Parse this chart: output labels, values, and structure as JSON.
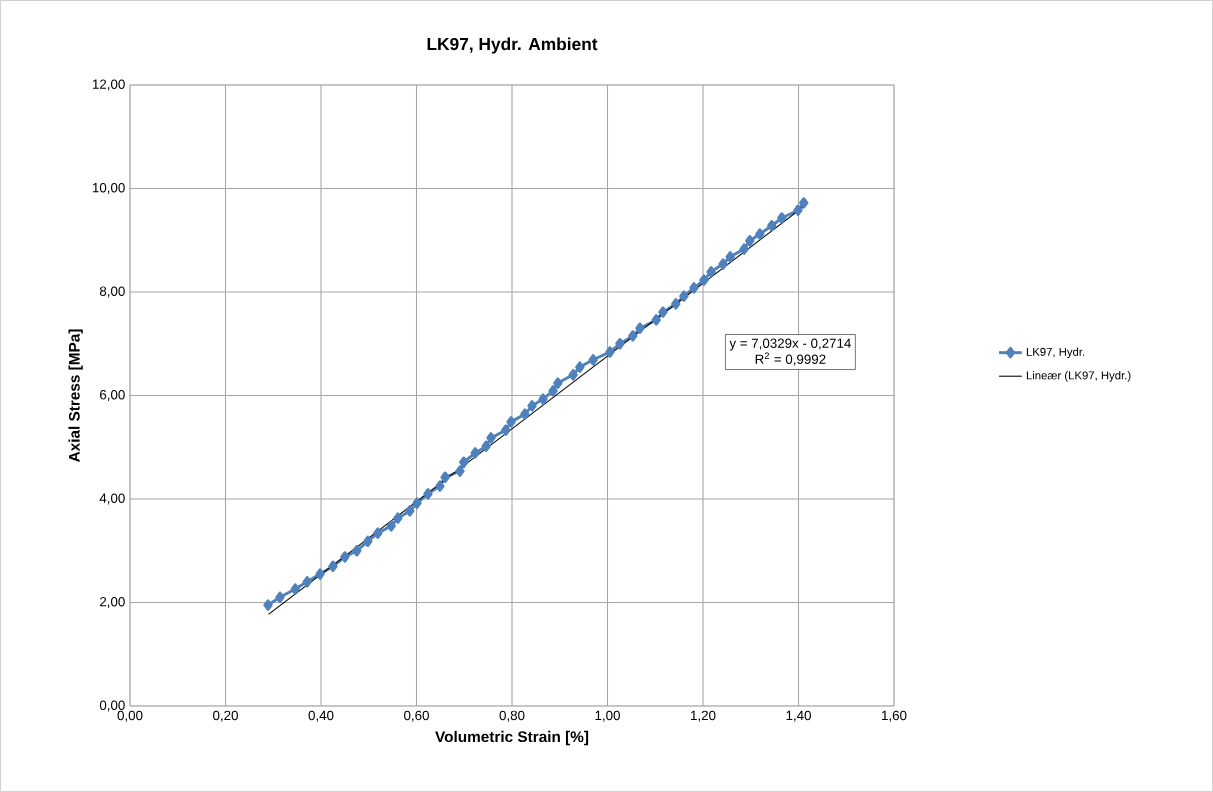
{
  "chart_data": {
    "type": "line",
    "title": "LK97, Hydr. Ambient",
    "xlabel": "Volumetric Strain [%]",
    "ylabel": "Axial Stress [MPa]",
    "xlim": [
      0,
      1.6
    ],
    "ylim": [
      0,
      12
    ],
    "xticks": [
      {
        "value": 0,
        "label": "0,00"
      },
      {
        "value": 0.2,
        "label": "0,20"
      },
      {
        "value": 0.4,
        "label": "0,40"
      },
      {
        "value": 0.6,
        "label": "0,60"
      },
      {
        "value": 0.8,
        "label": "0,80"
      },
      {
        "value": 1.0,
        "label": "1,00"
      },
      {
        "value": 1.2,
        "label": "1,20"
      },
      {
        "value": 1.4,
        "label": "1,40"
      },
      {
        "value": 1.6,
        "label": "1,60"
      }
    ],
    "yticks": [
      {
        "value": 0,
        "label": "0,00"
      },
      {
        "value": 2,
        "label": "2,00"
      },
      {
        "value": 4,
        "label": "4,00"
      },
      {
        "value": 6,
        "label": "6,00"
      },
      {
        "value": 8,
        "label": "8,00"
      },
      {
        "value": 10,
        "label": "10,00"
      },
      {
        "value": 12,
        "label": "12,00"
      }
    ],
    "grid": true,
    "legend": "right",
    "marker": "diamond",
    "annotations": [
      "y = 7,0329x - 0,2714",
      "R$^{2}$ = 0,9992"
    ],
    "series": [
      {
        "name": "LK97, Hydr.",
        "color": "#4f81bd",
        "x": [
          0.289,
          0.314,
          0.346,
          0.371,
          0.398,
          0.425,
          0.45,
          0.475,
          0.498,
          0.519,
          0.547,
          0.561,
          0.586,
          0.601,
          0.624,
          0.649,
          0.66,
          0.691,
          0.699,
          0.723,
          0.746,
          0.756,
          0.787,
          0.798,
          0.827,
          0.842,
          0.865,
          0.886,
          0.896,
          0.928,
          0.942,
          0.97,
          1.005,
          1.026,
          1.053,
          1.068,
          1.102,
          1.116,
          1.143,
          1.16,
          1.181,
          1.202,
          1.217,
          1.242,
          1.257,
          1.286,
          1.298,
          1.319,
          1.344,
          1.365,
          1.399,
          1.411
        ],
        "values": [
          1.95,
          2.1,
          2.26,
          2.4,
          2.55,
          2.7,
          2.88,
          3.0,
          3.18,
          3.34,
          3.48,
          3.63,
          3.77,
          3.92,
          4.1,
          4.25,
          4.42,
          4.54,
          4.71,
          4.89,
          5.02,
          5.18,
          5.33,
          5.49,
          5.64,
          5.8,
          5.93,
          6.09,
          6.24,
          6.4,
          6.55,
          6.69,
          6.84,
          7.0,
          7.15,
          7.3,
          7.46,
          7.61,
          7.77,
          7.92,
          8.08,
          8.23,
          8.39,
          8.54,
          8.68,
          8.83,
          8.99,
          9.12,
          9.28,
          9.43,
          9.58,
          9.72
        ]
      },
      {
        "name": "Lineær (LK97, Hydr.)",
        "color": "#000000",
        "marker": "none",
        "x": [
          0.29,
          1.415
        ],
        "values": [
          1.77,
          9.68
        ]
      }
    ]
  }
}
